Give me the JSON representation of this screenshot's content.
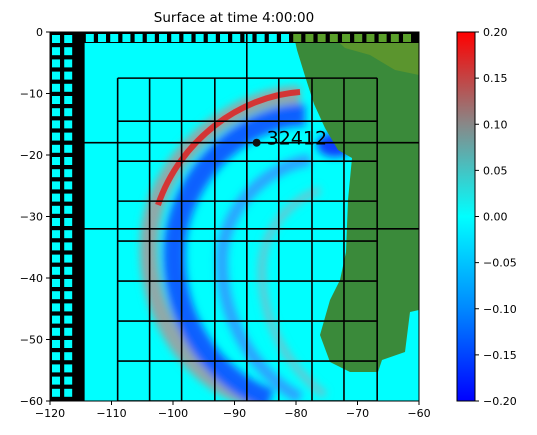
{
  "chart_data": {
    "type": "heatmap",
    "title": "Surface at time 4:00:00",
    "xlabel": "",
    "ylabel": "",
    "xlim": [
      -120,
      -60
    ],
    "ylim": [
      -60,
      0
    ],
    "x_ticks": [
      "−120",
      "−110",
      "−100",
      "−90",
      "−80",
      "−70",
      "−60"
    ],
    "x_tick_values": [
      -120,
      -110,
      -100,
      -90,
      -80,
      -70,
      -60
    ],
    "y_ticks": [
      "0",
      "−10",
      "−20",
      "−30",
      "−40",
      "−50",
      "−60"
    ],
    "y_tick_values": [
      0,
      -10,
      -20,
      -30,
      -40,
      -50,
      -60
    ],
    "colorbar": {
      "range": [
        -0.2,
        0.2
      ],
      "ticks": [
        "0.20",
        "0.15",
        "0.10",
        "0.05",
        "0.00",
        "−0.05",
        "−0.10",
        "−0.15",
        "−0.20"
      ],
      "tick_values": [
        0.2,
        0.15,
        0.1,
        0.05,
        0.0,
        -0.05,
        -0.1,
        -0.15,
        -0.2
      ],
      "colors": [
        "#0000ff",
        "#0088ff",
        "#00ffff",
        "#888888",
        "#ff0000"
      ]
    },
    "colors": {
      "water": "#00ffff",
      "land": "#3a8a3a",
      "wave_positive": "#e02020",
      "wave_negative": "#1060ff",
      "wave_gray": "#a0a0a0"
    },
    "gauge": {
      "label": "32412",
      "x": -86.4,
      "y": -18.0
    },
    "grid_major": {
      "x": [
        -114.5,
        -88
      ],
      "y": [
        -18,
        -32
      ]
    },
    "grid_fine": {
      "x": [
        -109,
        -103.8,
        -98.6,
        -93.2,
        -88,
        -82.8,
        -77.4,
        -72.2,
        -66.8
      ],
      "y": [
        -7.5,
        -14.5,
        -21,
        -27.5,
        -34,
        -40.5,
        -47,
        -53.5,
        -60
      ]
    },
    "checker_region": {
      "x_range": [
        -120,
        -114.5
      ],
      "y_range": [
        -60,
        0
      ]
    }
  }
}
